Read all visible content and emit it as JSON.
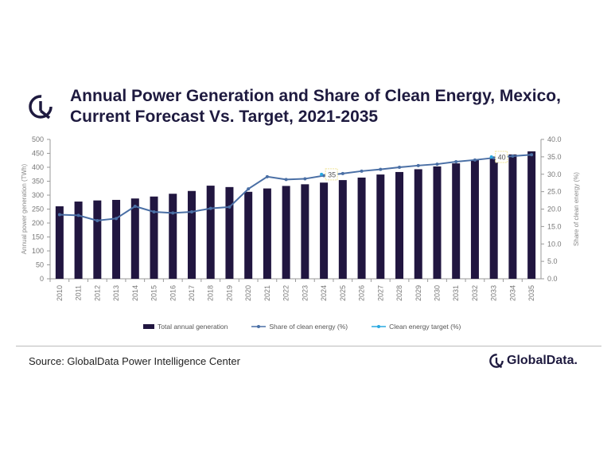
{
  "header": {
    "title_line1": "Annual Power Generation and Share of Clean Energy, Mexico,",
    "title_line2": "Current Forecast Vs. Target, 2021-2035"
  },
  "footer": {
    "source": "Source: GlobalData Power Intelligence Center",
    "brand": "GlobalData."
  },
  "chart_data": {
    "type": "bar",
    "categories": [
      "2010",
      "2011",
      "2012",
      "2013",
      "2014",
      "2015",
      "2016",
      "2017",
      "2018",
      "2019",
      "2020",
      "2021",
      "2022",
      "2023",
      "2024",
      "2025",
      "2026",
      "2027",
      "2028",
      "2029",
      "2030",
      "2031",
      "2032",
      "2033",
      "2034",
      "2035"
    ],
    "series": [
      {
        "name": "Total annual generation",
        "type": "bar",
        "axis": "left",
        "color": "#211640",
        "values": [
          260,
          277,
          281,
          283,
          288,
          295,
          305,
          315,
          334,
          329,
          312,
          324,
          333,
          339,
          345,
          354,
          363,
          374,
          383,
          393,
          403,
          414,
          426,
          436,
          446,
          457
        ]
      },
      {
        "name": "Share of clean energy (%)",
        "type": "line",
        "axis": "right",
        "color": "#4a6fa5",
        "values": [
          18.4,
          18.2,
          16.7,
          17.3,
          20.8,
          19.2,
          18.9,
          19.2,
          20.2,
          20.6,
          25.8,
          29.3,
          28.5,
          28.7,
          29.6,
          30.2,
          30.9,
          31.4,
          32.0,
          32.5,
          32.9,
          33.6,
          34.1,
          34.7,
          35.2,
          35.6
        ]
      },
      {
        "name": "Clean energy target (%)",
        "type": "scatter",
        "axis": "right",
        "color": "#29a8e0",
        "points": [
          {
            "x": "2024",
            "y": 35,
            "label": "35"
          },
          {
            "x": "2033",
            "y": 40,
            "label": "40"
          }
        ]
      }
    ],
    "ylabel": "Annual power generation (TWh)",
    "ylim": [
      0,
      500
    ],
    "yticks": [
      "0",
      "50",
      "100",
      "150",
      "200",
      "250",
      "300",
      "350",
      "400",
      "450",
      "500"
    ],
    "y2label": "Share of clean energy (%)",
    "y2lim": [
      0,
      40
    ],
    "y2ticks": [
      "0.0",
      "5.0",
      "10.0",
      "15.0",
      "20.0",
      "25.0",
      "30.0",
      "35.0",
      "40.0"
    ],
    "grid": false,
    "legend": "bottom"
  }
}
